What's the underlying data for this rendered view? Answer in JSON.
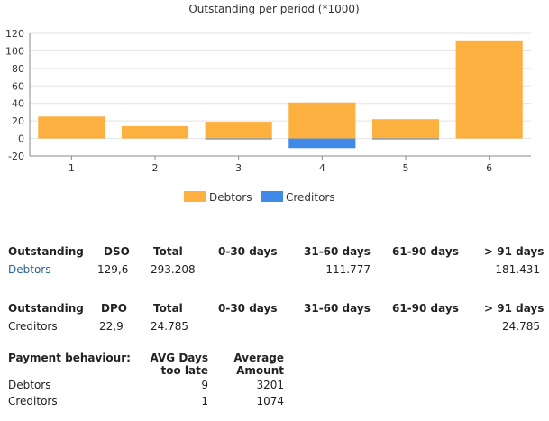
{
  "chart_data": {
    "type": "bar",
    "title": "Outstanding per period (*1000)",
    "categories": [
      "1",
      "2",
      "3",
      "4",
      "5",
      "6"
    ],
    "series": [
      {
        "name": "Debtors",
        "color": "#fbb040",
        "values": [
          25,
          14,
          19,
          41,
          22,
          112
        ]
      },
      {
        "name": "Creditors",
        "color": "#3f8ae6",
        "values": [
          0,
          0,
          -1,
          -11,
          -1,
          0
        ]
      }
    ],
    "yticks": [
      120,
      100,
      80,
      60,
      40,
      20,
      0,
      -20
    ],
    "ylim": [
      -20,
      120
    ],
    "grid": true,
    "legend_position": "bottom"
  },
  "debtors_table": {
    "headers": [
      "Outstanding",
      "DSO",
      "Total",
      "0-30 days",
      "31-60 days",
      "61-90 days",
      "> 91 days"
    ],
    "row": {
      "label": "Debtors",
      "dso": "129,6",
      "total": "293.208",
      "d0_30": "",
      "d31_60": "111.777",
      "d61_90": "",
      "d91": "181.431"
    }
  },
  "creditors_table": {
    "headers": [
      "Outstanding",
      "DPO",
      "Total",
      "0-30 days",
      "31-60 days",
      "61-90 days",
      "> 91 days"
    ],
    "row": {
      "label": "Creditors",
      "dpo": "22,9",
      "total": "24.785",
      "d0_30": "",
      "d31_60": "",
      "d61_90": "",
      "d91": "24.785"
    }
  },
  "payment_behaviour": {
    "title": "Payment behaviour:",
    "col1_line1": "AVG Days",
    "col1_line2": "too late",
    "col2_line1": "Average",
    "col2_line2": "Amount",
    "rows": [
      {
        "label": "Debtors",
        "days": "9",
        "amount": "3201"
      },
      {
        "label": "Creditors",
        "days": "1",
        "amount": "1074"
      }
    ]
  }
}
